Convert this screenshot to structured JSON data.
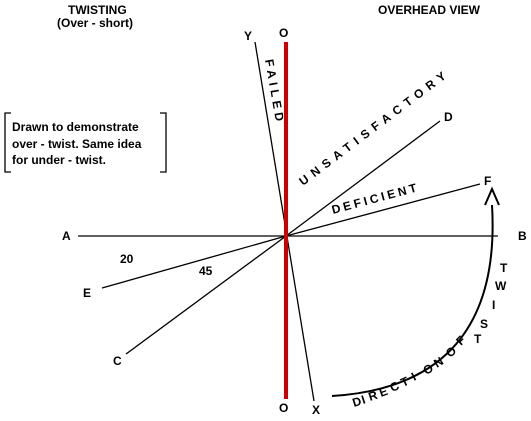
{
  "titles": {
    "left_line1": "TWISTING",
    "left_line2": "(Over - short)",
    "right": "OVERHEAD VIEW"
  },
  "note": {
    "line1": "Drawn to demonstrate",
    "line2": "over - twist. Same idea",
    "line3": "for under - twist."
  },
  "points": {
    "A": "A",
    "B": "B",
    "C": "C",
    "D": "D",
    "E": "E",
    "F": "F",
    "O_top": "O",
    "O_bottom": "O",
    "X": "X",
    "Y": "Y"
  },
  "angles": {
    "a20": "20",
    "a45": "45"
  },
  "zones": {
    "failed": "FAILED",
    "unsatisfactory": "UNSATISFACTORY",
    "deficient": "DEFICIENT"
  },
  "twist_label": "TWIST",
  "direction_label": "DIRECTION OF",
  "colors": {
    "ink": "#000000",
    "ref_line": "#cc0000"
  },
  "icons": {
    "arrow": "arrowhead-icon"
  }
}
